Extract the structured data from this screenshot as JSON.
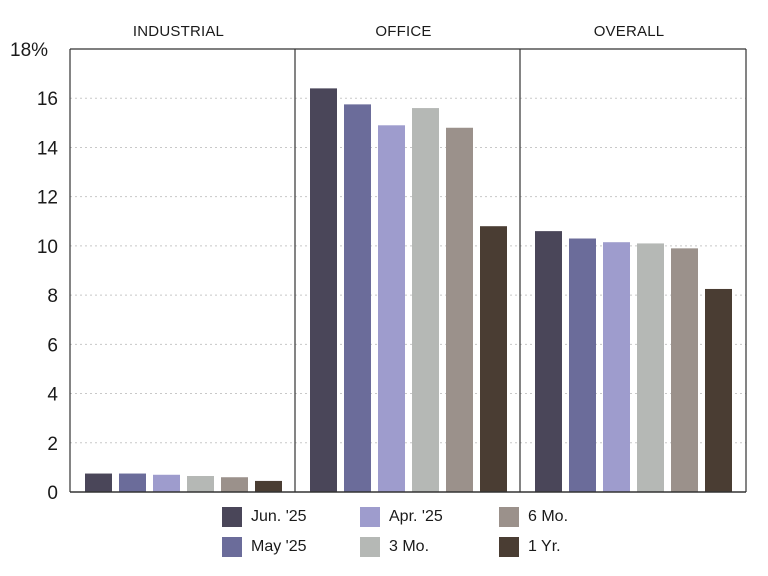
{
  "chart_data": {
    "type": "bar",
    "panels": [
      "INDUSTRIAL",
      "OFFICE",
      "OVERALL"
    ],
    "series": [
      {
        "name": "Jun. '25",
        "color": "#4a4659",
        "values": [
          0.75,
          16.4,
          10.6
        ]
      },
      {
        "name": "May '25",
        "color": "#6b6c9a",
        "values": [
          0.75,
          15.75,
          10.3
        ]
      },
      {
        "name": "Apr. '25",
        "color": "#9e9ccd",
        "values": [
          0.7,
          14.9,
          10.15
        ]
      },
      {
        "name": "3 Mo.",
        "color": "#b5b8b5",
        "values": [
          0.65,
          15.6,
          10.1
        ]
      },
      {
        "name": "6 Mo.",
        "color": "#9b918b",
        "values": [
          0.6,
          14.8,
          9.9
        ]
      },
      {
        "name": "1 Yr.",
        "color": "#4a3d33",
        "values": [
          0.45,
          10.8,
          8.25
        ]
      }
    ],
    "y_ticks": [
      "0",
      "2",
      "4",
      "6",
      "8",
      "10",
      "12",
      "14",
      "16",
      "18%"
    ],
    "ylim": [
      0,
      18
    ],
    "grid": true,
    "legend_position": "bottom"
  }
}
